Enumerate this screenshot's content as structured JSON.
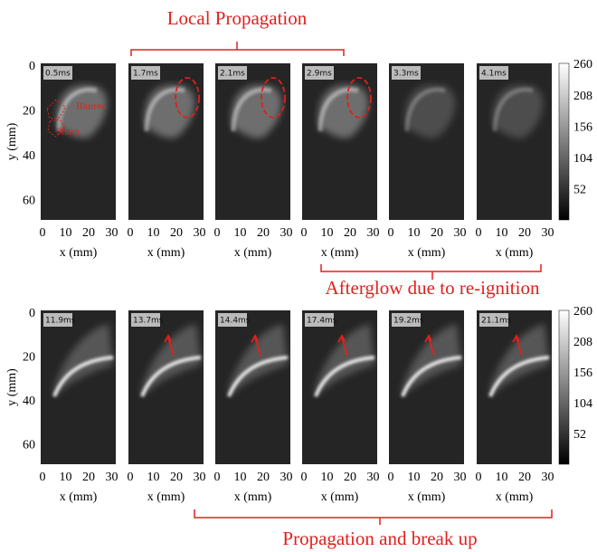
{
  "headers": {
    "top": "Local Propagation",
    "middle": "Afterglow due to re-ignition",
    "bottom": "Propagation and break up"
  },
  "annotations": {
    "blurred": "Blurred",
    "sharp": "Sharp"
  },
  "rows": [
    {
      "y_label": "y (mm)",
      "y_ticks": [
        0,
        20,
        40,
        60
      ],
      "colorbar_ticks": [
        260,
        208,
        156,
        104,
        52
      ],
      "panels": [
        {
          "time": "0.5ms",
          "x_label": "x (mm)",
          "x_ticks": [
            0,
            10,
            20,
            30
          ]
        },
        {
          "time": "1.7ms",
          "x_label": "x (mm)",
          "x_ticks": [
            0,
            10,
            20,
            30
          ]
        },
        {
          "time": "2.1ms",
          "x_label": "x (mm)",
          "x_ticks": [
            0,
            10,
            20,
            30
          ]
        },
        {
          "time": "2.9ms",
          "x_label": "x (mm)",
          "x_ticks": [
            0,
            10,
            20,
            30
          ]
        },
        {
          "time": "3.3ms",
          "x_label": "x (mm)",
          "x_ticks": [
            0,
            10,
            20,
            30
          ]
        },
        {
          "time": "4.1ms",
          "x_label": "x (mm)",
          "x_ticks": [
            0,
            10,
            20,
            30
          ]
        }
      ]
    },
    {
      "y_label": "y (mm)",
      "y_ticks": [
        0,
        20,
        40,
        60
      ],
      "colorbar_ticks": [
        260,
        208,
        156,
        104,
        52
      ],
      "panels": [
        {
          "time": "11.9ms",
          "x_label": "x (mm)",
          "x_ticks": [
            0,
            10,
            20,
            30
          ]
        },
        {
          "time": "13.7ms",
          "x_label": "x (mm)",
          "x_ticks": [
            0,
            10,
            20,
            30
          ]
        },
        {
          "time": "14.4ms",
          "x_label": "x (mm)",
          "x_ticks": [
            0,
            10,
            20,
            30
          ]
        },
        {
          "time": "17.4ms",
          "x_label": "x (mm)",
          "x_ticks": [
            0,
            10,
            20,
            30
          ]
        },
        {
          "time": "19.2ms",
          "x_label": "x (mm)",
          "x_ticks": [
            0,
            10,
            20,
            30
          ]
        },
        {
          "time": "21.1ms",
          "x_label": "x (mm)",
          "x_ticks": [
            0,
            10,
            20,
            30
          ]
        }
      ]
    }
  ]
}
